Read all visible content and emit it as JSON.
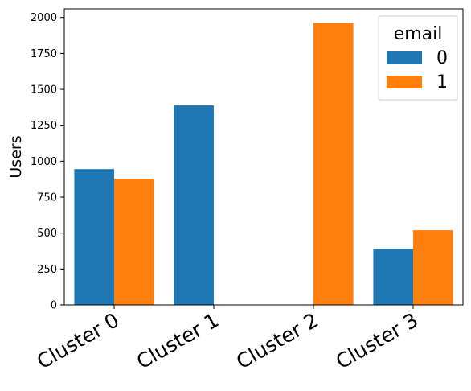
{
  "chart_data": {
    "type": "bar",
    "title": "",
    "xlabel": "",
    "ylabel": "Users",
    "categories": [
      "Cluster 0",
      "Cluster 1",
      "Cluster 2",
      "Cluster 3"
    ],
    "series": [
      {
        "name": "0",
        "color": "#1f77b4",
        "values": [
          945,
          1388,
          0,
          390
        ]
      },
      {
        "name": "1",
        "color": "#ff7f0e",
        "values": [
          878,
          0,
          1962,
          520
        ]
      }
    ],
    "ylim": [
      0,
      2060
    ],
    "yticks": [
      0,
      250,
      500,
      750,
      1000,
      1250,
      1500,
      1750,
      2000
    ],
    "legend": {
      "title": "email",
      "placement": "top-right"
    },
    "grid": false
  }
}
